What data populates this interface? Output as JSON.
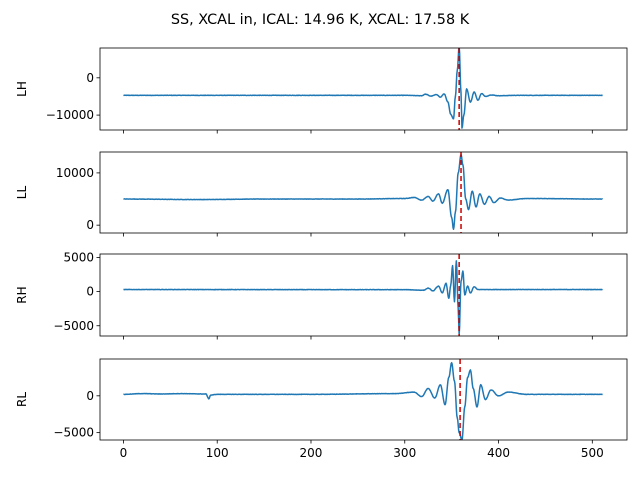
{
  "chart_data": {
    "type": "line",
    "title": "SS, XCAL in, ICAL: 14.96 K, XCAL: 17.58 K",
    "xlabel": "",
    "xlim": [
      -25,
      537
    ],
    "xticks": [
      0,
      100,
      200,
      300,
      400,
      500
    ],
    "grid": false,
    "line_color": "#1f77b4",
    "marker_color": "#cc0000",
    "marker_style": "dashed vertical line",
    "panels": [
      {
        "ylabel": "LH",
        "ylim": [
          -14000,
          8000
        ],
        "yticks": [
          0,
          -10000
        ],
        "ytick_labels": [
          "0",
          "−10000"
        ],
        "baseline": -4700,
        "marker_x": 358,
        "anchors": [
          [
            0,
            -4700
          ],
          [
            300,
            -4700
          ],
          [
            318,
            -4800
          ],
          [
            322,
            -4400
          ],
          [
            328,
            -4900
          ],
          [
            334,
            -4500
          ],
          [
            338,
            -5200
          ],
          [
            342,
            -4300
          ],
          [
            346,
            -6500
          ],
          [
            349,
            -9800
          ],
          [
            352,
            -11000
          ],
          [
            354,
            -5000
          ],
          [
            356,
            2000
          ],
          [
            358,
            8500
          ],
          [
            360,
            -4000
          ],
          [
            361,
            -13500
          ],
          [
            363,
            -10000
          ],
          [
            366,
            -3000
          ],
          [
            370,
            -6500
          ],
          [
            374,
            -3800
          ],
          [
            378,
            -6000
          ],
          [
            382,
            -4200
          ],
          [
            386,
            -5000
          ],
          [
            392,
            -4600
          ],
          [
            400,
            -4800
          ],
          [
            420,
            -4700
          ],
          [
            511,
            -4700
          ]
        ]
      },
      {
        "ylabel": "LL",
        "ylim": [
          -1500,
          14000
        ],
        "yticks": [
          0,
          10000
        ],
        "ytick_labels": [
          "0",
          "10000"
        ],
        "baseline": 5000,
        "marker_x": 360,
        "anchors": [
          [
            0,
            5000
          ],
          [
            80,
            4900
          ],
          [
            150,
            5000
          ],
          [
            250,
            5000
          ],
          [
            300,
            5100
          ],
          [
            310,
            5300
          ],
          [
            318,
            4800
          ],
          [
            325,
            5500
          ],
          [
            330,
            4600
          ],
          [
            336,
            6000
          ],
          [
            340,
            4200
          ],
          [
            346,
            6800
          ],
          [
            350,
            1500
          ],
          [
            352,
            -800
          ],
          [
            354,
            2500
          ],
          [
            357,
            10000
          ],
          [
            360,
            13500
          ],
          [
            362,
            11500
          ],
          [
            365,
            5000
          ],
          [
            368,
            3000
          ],
          [
            372,
            6500
          ],
          [
            376,
            3500
          ],
          [
            380,
            6000
          ],
          [
            385,
            4000
          ],
          [
            390,
            5500
          ],
          [
            395,
            4300
          ],
          [
            402,
            5200
          ],
          [
            410,
            4800
          ],
          [
            430,
            5100
          ],
          [
            511,
            5000
          ]
        ]
      },
      {
        "ylabel": "RH",
        "ylim": [
          -6500,
          5500
        ],
        "yticks": [
          5000,
          0,
          -5000
        ],
        "ytick_labels": [
          "5000",
          "0",
          "−5000"
        ],
        "baseline": 300,
        "marker_x": 358,
        "anchors": [
          [
            0,
            300
          ],
          [
            300,
            280
          ],
          [
            320,
            200
          ],
          [
            325,
            500
          ],
          [
            330,
            100
          ],
          [
            336,
            800
          ],
          [
            340,
            -200
          ],
          [
            344,
            1200
          ],
          [
            347,
            -1000
          ],
          [
            349,
            900
          ],
          [
            351,
            3800
          ],
          [
            353,
            -1500
          ],
          [
            355,
            4500
          ],
          [
            357,
            -2500
          ],
          [
            358,
            -6300
          ],
          [
            360,
            1500
          ],
          [
            362,
            3000
          ],
          [
            364,
            -500
          ],
          [
            367,
            800
          ],
          [
            370,
            -200
          ],
          [
            374,
            700
          ],
          [
            378,
            300
          ],
          [
            511,
            300
          ]
        ]
      },
      {
        "ylabel": "RL",
        "ylim": [
          -6000,
          5000
        ],
        "yticks": [
          0,
          -5000
        ],
        "ytick_labels": [
          "0",
          "−5000"
        ],
        "baseline": 200,
        "marker_x": 359,
        "anchors": [
          [
            0,
            200
          ],
          [
            20,
            300
          ],
          [
            40,
            250
          ],
          [
            60,
            300
          ],
          [
            88,
            250
          ],
          [
            91,
            -400
          ],
          [
            93,
            100
          ],
          [
            100,
            200
          ],
          [
            200,
            200
          ],
          [
            290,
            300
          ],
          [
            310,
            500
          ],
          [
            318,
            -100
          ],
          [
            325,
            1000
          ],
          [
            332,
            -300
          ],
          [
            338,
            1500
          ],
          [
            343,
            -1200
          ],
          [
            347,
            2500
          ],
          [
            350,
            4500
          ],
          [
            353,
            2000
          ],
          [
            356,
            -3000
          ],
          [
            358,
            -5000
          ],
          [
            361,
            -6000
          ],
          [
            364,
            -1500
          ],
          [
            367,
            2500
          ],
          [
            370,
            3500
          ],
          [
            373,
            1000
          ],
          [
            377,
            -1500
          ],
          [
            381,
            1500
          ],
          [
            386,
            -500
          ],
          [
            392,
            800
          ],
          [
            400,
            0
          ],
          [
            410,
            500
          ],
          [
            430,
            200
          ],
          [
            511,
            200
          ]
        ]
      }
    ]
  }
}
